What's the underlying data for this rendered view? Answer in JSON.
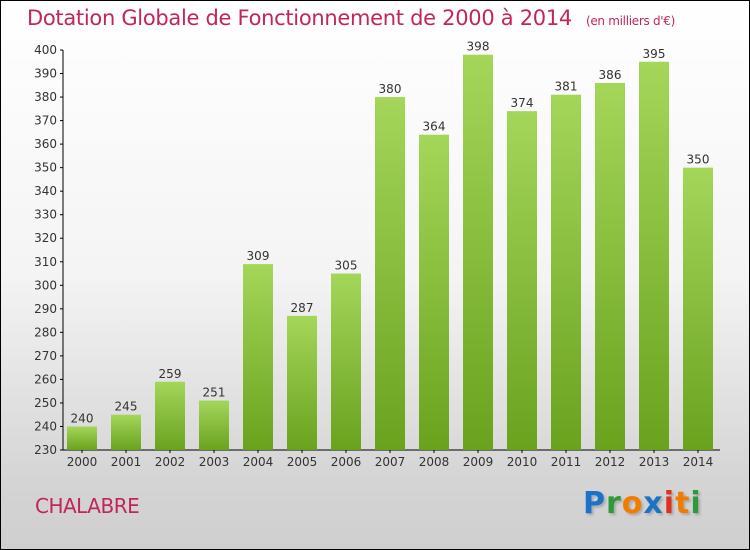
{
  "title": "Dotation Globale de Fonctionnement de 2000 à 2014",
  "unit": "(en milliers d'€)",
  "commune": "CHALABRE",
  "logo": {
    "text": "Proxiti",
    "letters": [
      "P",
      "r",
      "o",
      "x",
      "i",
      "t",
      "i"
    ],
    "colors": [
      "#1a73c8",
      "#2a9a3a",
      "#f07d00",
      "#1a73c8",
      "#e03020",
      "#f07d00",
      "#2a9a3a"
    ]
  },
  "colors": {
    "bar_top": "#a4d65a",
    "bar_bottom": "#6aa21e",
    "title": "#c2255c"
  },
  "chart_data": {
    "type": "bar",
    "title": "Dotation Globale de Fonctionnement de 2000 à 2014",
    "ylabel": "(en milliers d'€)",
    "xlabel": "",
    "categories": [
      "2000",
      "2001",
      "2002",
      "2003",
      "2004",
      "2005",
      "2006",
      "2007",
      "2008",
      "2009",
      "2010",
      "2011",
      "2012",
      "2013",
      "2014"
    ],
    "values": [
      240,
      245,
      259,
      251,
      309,
      287,
      305,
      380,
      364,
      398,
      374,
      381,
      386,
      395,
      350
    ],
    "ylim": [
      230,
      400
    ],
    "yticks": [
      230,
      240,
      250,
      260,
      270,
      280,
      290,
      300,
      310,
      320,
      330,
      340,
      350,
      360,
      370,
      380,
      390,
      400
    ],
    "grid": false,
    "legend": "none"
  }
}
